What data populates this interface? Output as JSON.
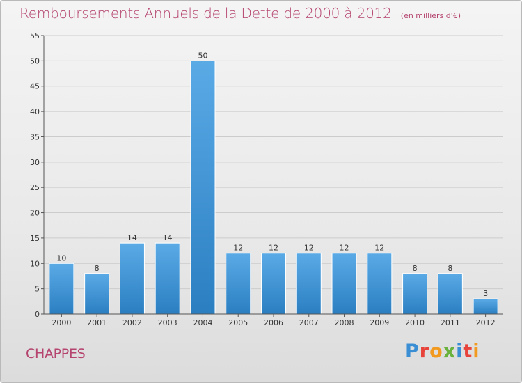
{
  "header": {
    "title": "Remboursements Annuels de la Dette de 2000 à 2012",
    "unit": "(en milliers d'€)"
  },
  "footer": {
    "commune": "CHAPPES",
    "brand": "Proxiti",
    "brand_colors": [
      "#3a8fd4",
      "#e8433a",
      "#f29a1f",
      "#6ab23e",
      "#3a8fd4",
      "#e8433a",
      "#f29a1f"
    ]
  },
  "colors": {
    "title": "#b5446f",
    "bar_light": "#5aaae6",
    "bar_dark": "#2b7fc1",
    "grid": "#cccccc"
  },
  "chart_data": {
    "type": "bar",
    "title": "Remboursements Annuels de la Dette de 2000 à 2012",
    "subtitle": "(en milliers d'€)",
    "categories": [
      "2000",
      "2001",
      "2002",
      "2003",
      "2004",
      "2005",
      "2006",
      "2007",
      "2008",
      "2009",
      "2010",
      "2011",
      "2012"
    ],
    "values": [
      10,
      8,
      14,
      14,
      50,
      12,
      12,
      12,
      12,
      12,
      8,
      8,
      3
    ],
    "ylim": [
      0,
      55
    ],
    "yticks": [
      0,
      5,
      10,
      15,
      20,
      25,
      30,
      35,
      40,
      45,
      50,
      55
    ],
    "grid": true,
    "data_labels": true
  }
}
